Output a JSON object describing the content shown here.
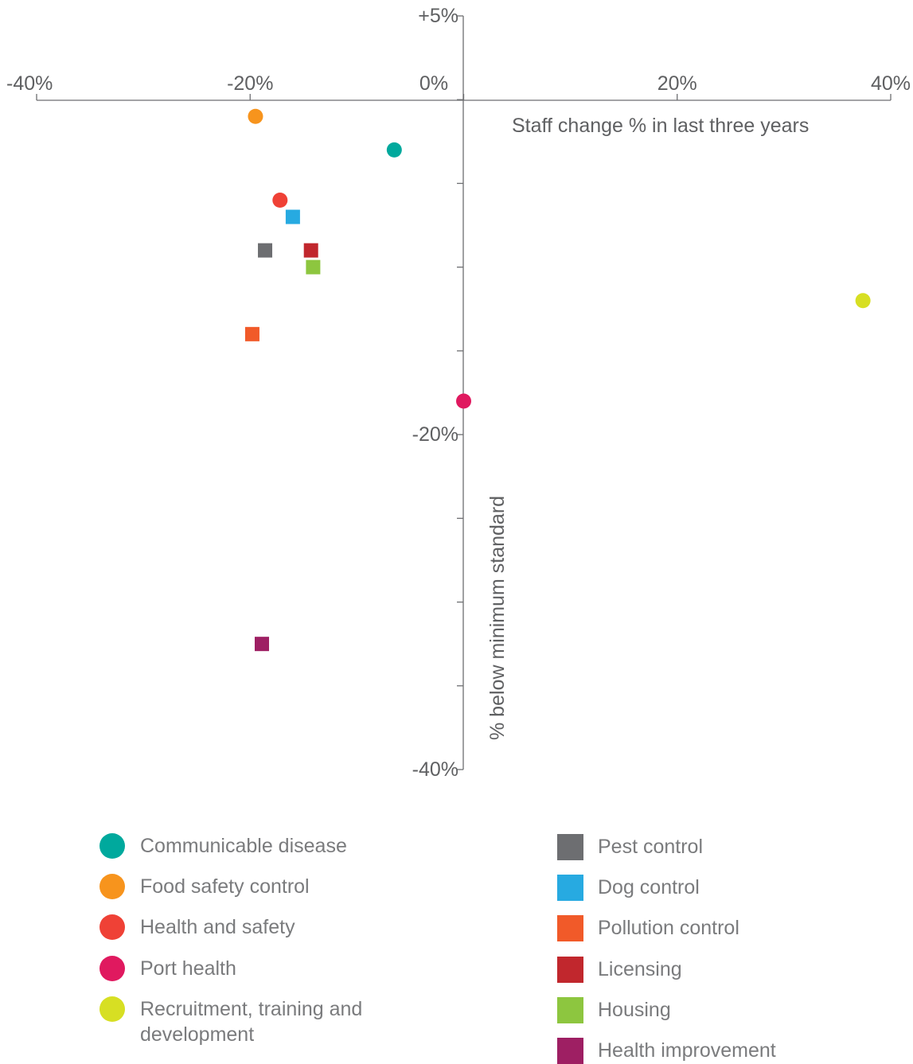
{
  "chart_data": {
    "type": "scatter",
    "title": "",
    "xlabel": "Staff change % in last three years",
    "ylabel": "% below minimum standard",
    "xlim": [
      -40,
      40
    ],
    "ylim": [
      -40,
      5
    ],
    "x_ticks": [
      {
        "value": -40,
        "label": "-40%"
      },
      {
        "value": -20,
        "label": "-20%"
      },
      {
        "value": 0,
        "label": "0%"
      },
      {
        "value": 20,
        "label": "20%"
      },
      {
        "value": 40,
        "label": "40%"
      }
    ],
    "y_ticks": [
      {
        "value": 5,
        "label": "+5%"
      },
      {
        "value": -20,
        "label": "-20%"
      },
      {
        "value": -40,
        "label": "-40%"
      }
    ],
    "y_minor_ticks": [
      0,
      -5,
      -10,
      -15,
      -25,
      -30,
      -35
    ],
    "series": [
      {
        "name": "Communicable disease",
        "shape": "circle",
        "color": "#00a99d",
        "x": -6.5,
        "y": -3
      },
      {
        "name": "Food safety control",
        "shape": "circle",
        "color": "#f7941d",
        "x": -19.5,
        "y": -1
      },
      {
        "name": "Health and safety",
        "shape": "circle",
        "color": "#ef4136",
        "x": -17.2,
        "y": -6
      },
      {
        "name": "Port health",
        "shape": "circle",
        "color": "#e0195f",
        "x": 0,
        "y": -18
      },
      {
        "name": "Recruitment, training and development",
        "shape": "circle",
        "color": "#d7df23",
        "x": 37.4,
        "y": -12
      },
      {
        "name": "Pest control",
        "shape": "square",
        "color": "#6d6e71",
        "x": -18.6,
        "y": -9
      },
      {
        "name": "Dog control",
        "shape": "square",
        "color": "#27aae1",
        "x": -16,
        "y": -7
      },
      {
        "name": "Pollution control",
        "shape": "square",
        "color": "#f15a29",
        "x": -19.8,
        "y": -14
      },
      {
        "name": "Licensing",
        "shape": "square",
        "color": "#c1272d",
        "x": -14.3,
        "y": -9
      },
      {
        "name": "Housing",
        "shape": "square",
        "color": "#8dc63f",
        "x": -14.1,
        "y": -10
      },
      {
        "name": "Health improvement",
        "shape": "square",
        "color": "#9e1f63",
        "x": -18.9,
        "y": -32.5
      }
    ],
    "grid": false,
    "legend": "bottom"
  },
  "legend_left": [
    {
      "label": "Communicable disease",
      "color": "#00a99d"
    },
    {
      "label": "Food safety control",
      "color": "#f7941d"
    },
    {
      "label": "Health and safety",
      "color": "#ef4136"
    },
    {
      "label": "Port health",
      "color": "#e0195f"
    },
    {
      "label": "Recruitment, training and development",
      "color": "#d7df23"
    }
  ],
  "legend_right": [
    {
      "label": "Pest control",
      "color": "#6d6e71"
    },
    {
      "label": "Dog control",
      "color": "#27aae1"
    },
    {
      "label": "Pollution control",
      "color": "#f15a29"
    },
    {
      "label": "Licensing",
      "color": "#c1272d"
    },
    {
      "label": "Housing",
      "color": "#8dc63f"
    },
    {
      "label": "Health improvement",
      "color": "#9e1f63"
    }
  ],
  "axis_color": "#6d6e71"
}
